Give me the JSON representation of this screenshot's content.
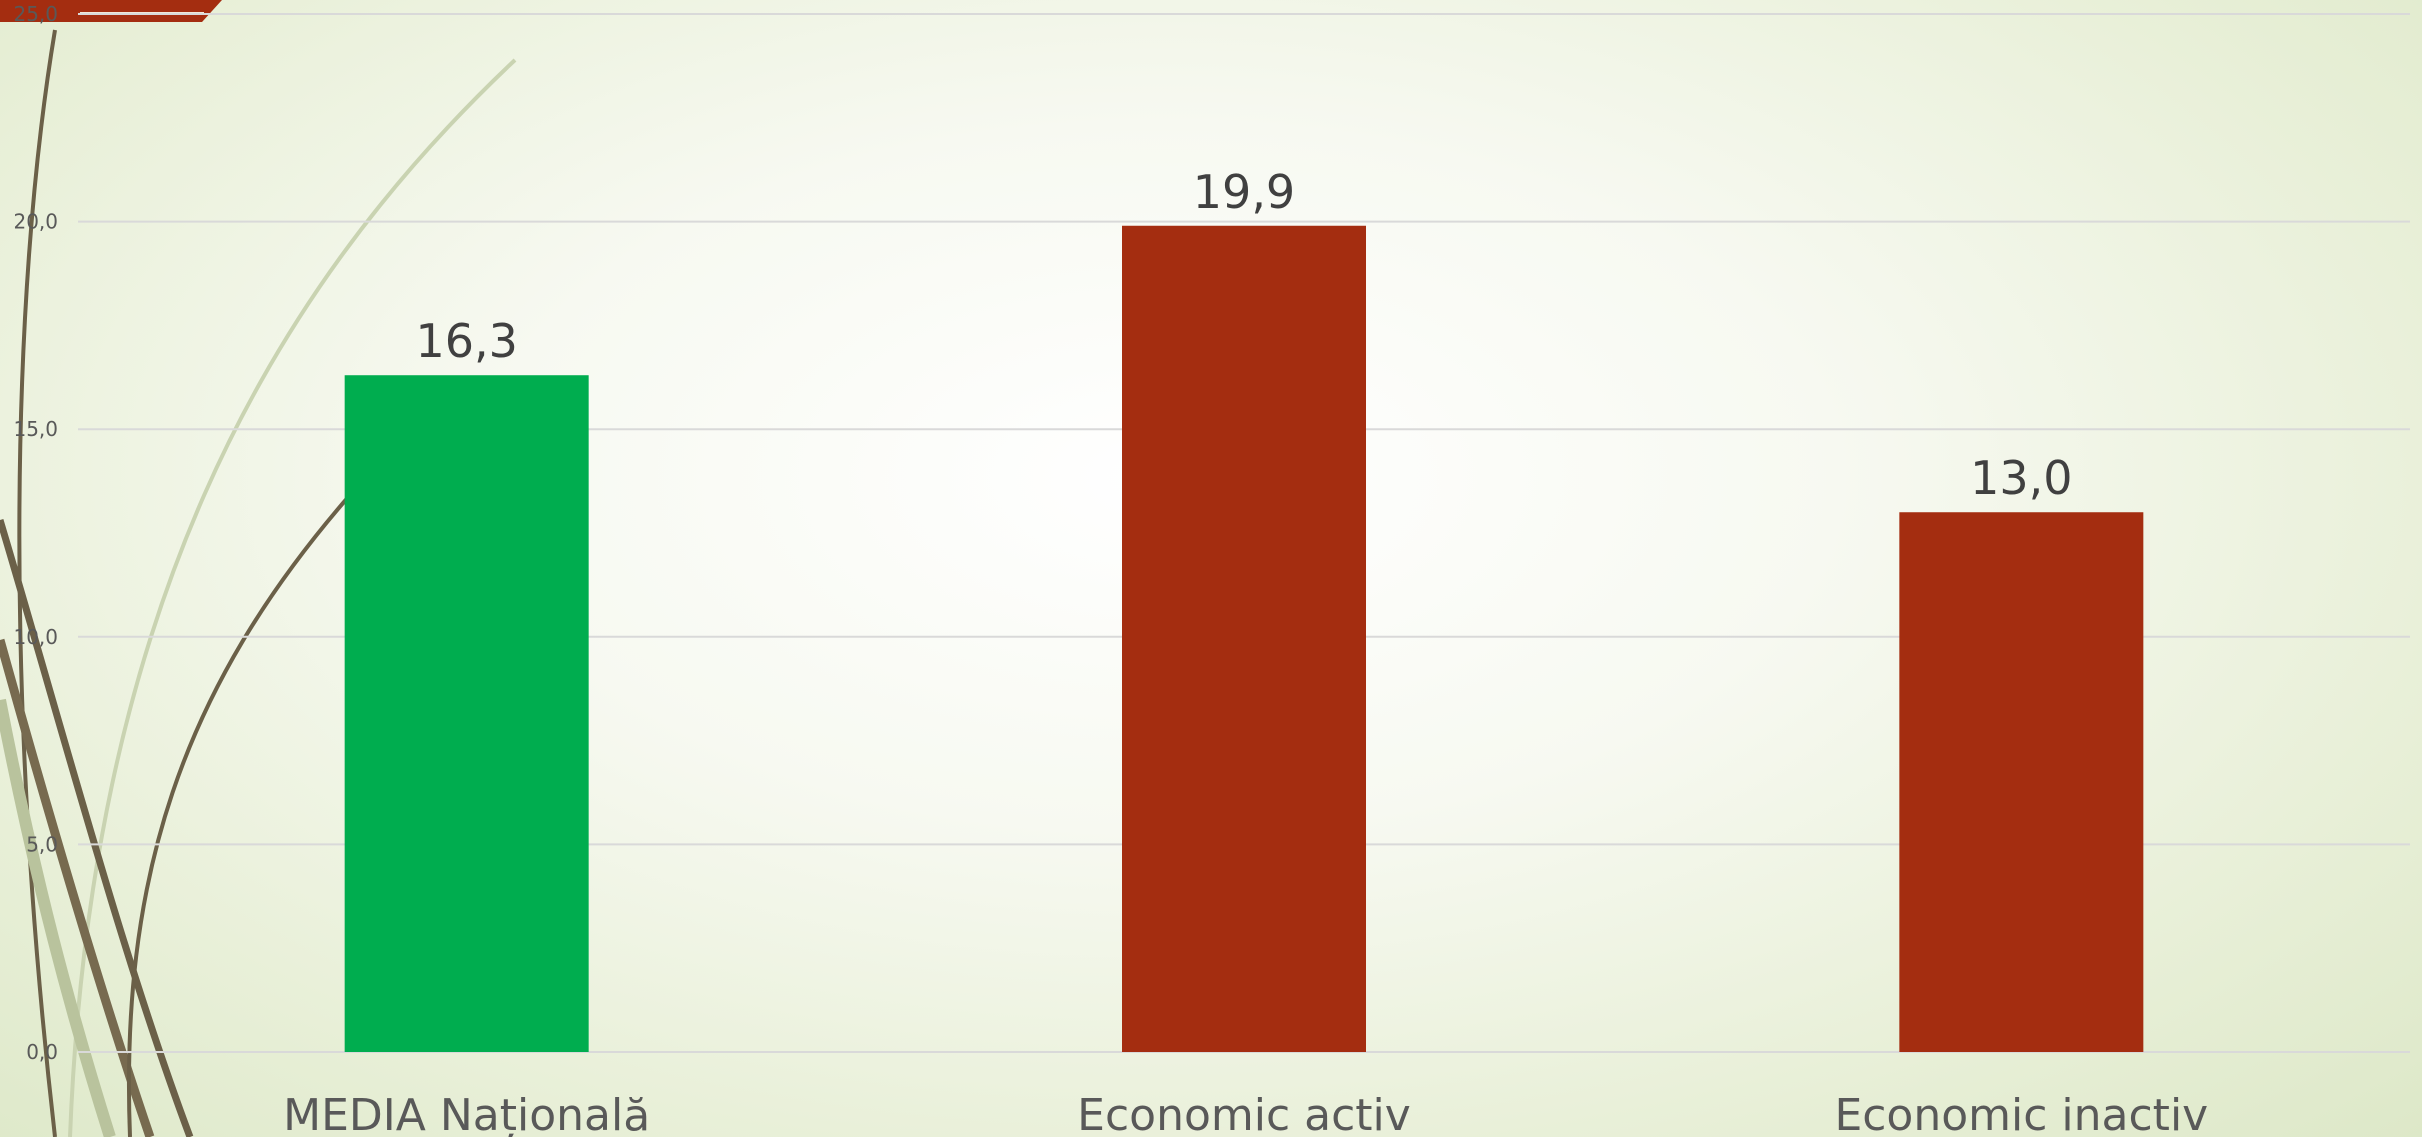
{
  "chart_data": {
    "type": "bar",
    "title": "",
    "xlabel": "",
    "ylabel": "",
    "ylim": [
      0,
      25
    ],
    "grid": true,
    "y_ticks": [
      0,
      5,
      10,
      15,
      20,
      25
    ],
    "y_tick_labels": [
      "0,0",
      "5,0",
      "10,0",
      "15,0",
      "20,0",
      "25,0"
    ],
    "categories": [
      "MEDIA Națională",
      "Economic activ",
      "Economic inactiv"
    ],
    "values": [
      16.3,
      19.9,
      13.0
    ],
    "value_labels": [
      "16,3",
      "19,9",
      "13,0"
    ],
    "bar_colors": [
      "#00ad4f",
      "#a42d10",
      "#a42d10"
    ]
  },
  "colors": {
    "accent": "#a42d10",
    "highlight_bar": "#00ad4f",
    "gridline": "#d9d9d9",
    "decor_stroke": "#6b6048"
  }
}
